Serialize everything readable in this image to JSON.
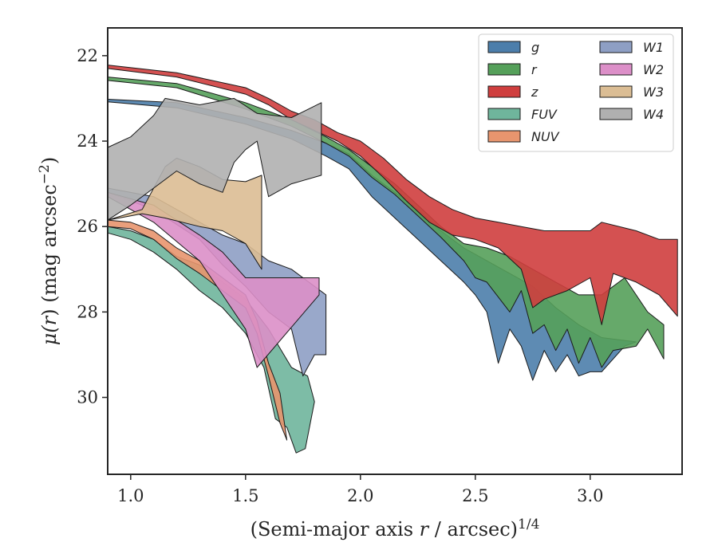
{
  "chart_data": {
    "type": "area",
    "xlabel": "(Semi-major axis r / arcsec)^1/4",
    "ylabel": "μ(r) (mag arcsec^−2)",
    "xlabel_parts": {
      "main": "(Semi-major axis ",
      "var": "r",
      "rest": " / arcsec)",
      "sup": "1/4"
    },
    "ylabel_parts": {
      "mu": "μ(",
      "var": "r",
      "mid": ") (mag arcsec",
      "sup": "−2",
      "close": ")"
    },
    "xlim": [
      0.9,
      3.4
    ],
    "ylim": [
      31.8,
      21.35
    ],
    "y_inverted": true,
    "grid": false,
    "legend_position": "top-right",
    "x_ticks": [
      1.0,
      1.5,
      2.0,
      2.5,
      3.0
    ],
    "x_tick_labels": [
      "1.0",
      "1.5",
      "2.0",
      "2.5",
      "3.0"
    ],
    "y_ticks": [
      22,
      24,
      26,
      28,
      30
    ],
    "y_tick_labels": [
      "22",
      "24",
      "26",
      "28",
      "30"
    ],
    "series": [
      {
        "name": "g",
        "color": "#4c7eab",
        "upper": [
          [
            0.9,
            23.02
          ],
          [
            1.2,
            23.1
          ],
          [
            1.5,
            23.45
          ],
          [
            1.7,
            23.75
          ],
          [
            1.85,
            24.05
          ],
          [
            1.95,
            24.3
          ],
          [
            2.05,
            24.8
          ],
          [
            2.15,
            25.2
          ],
          [
            2.25,
            25.6
          ],
          [
            2.35,
            26.1
          ],
          [
            2.45,
            26.5
          ],
          [
            2.55,
            26.8
          ],
          [
            2.65,
            27.1
          ],
          [
            2.75,
            27.4
          ],
          [
            2.85,
            27.9
          ],
          [
            2.95,
            28.3
          ],
          [
            3.05,
            28.6
          ],
          [
            3.2,
            28.7
          ]
        ],
        "lower": [
          [
            0.9,
            23.08
          ],
          [
            1.2,
            23.22
          ],
          [
            1.5,
            23.6
          ],
          [
            1.7,
            23.95
          ],
          [
            1.85,
            24.35
          ],
          [
            1.95,
            24.65
          ],
          [
            2.05,
            25.3
          ],
          [
            2.15,
            25.8
          ],
          [
            2.25,
            26.3
          ],
          [
            2.35,
            26.8
          ],
          [
            2.45,
            27.3
          ],
          [
            2.5,
            27.6
          ],
          [
            2.55,
            28.0
          ],
          [
            2.6,
            29.2
          ],
          [
            2.65,
            28.4
          ],
          [
            2.7,
            28.8
          ],
          [
            2.75,
            29.6
          ],
          [
            2.8,
            28.9
          ],
          [
            2.85,
            29.4
          ],
          [
            2.9,
            29.0
          ],
          [
            2.95,
            29.5
          ],
          [
            3.0,
            29.4
          ],
          [
            3.05,
            29.4
          ],
          [
            3.1,
            29.1
          ],
          [
            3.15,
            28.8
          ],
          [
            3.2,
            28.7
          ]
        ]
      },
      {
        "name": "r",
        "color": "#55a05a",
        "upper": [
          [
            0.9,
            22.5
          ],
          [
            1.2,
            22.65
          ],
          [
            1.5,
            23.1
          ],
          [
            1.7,
            23.5
          ],
          [
            1.85,
            23.9
          ],
          [
            1.95,
            24.2
          ],
          [
            2.05,
            24.6
          ],
          [
            2.15,
            25.0
          ],
          [
            2.25,
            25.5
          ],
          [
            2.35,
            26.0
          ],
          [
            2.45,
            26.4
          ],
          [
            2.55,
            26.5
          ],
          [
            2.65,
            26.7
          ],
          [
            2.75,
            27.0
          ],
          [
            2.85,
            27.3
          ],
          [
            2.95,
            27.6
          ],
          [
            3.05,
            27.6
          ],
          [
            3.15,
            27.2
          ],
          [
            3.25,
            28.0
          ],
          [
            3.32,
            28.3
          ]
        ],
        "lower": [
          [
            0.9,
            22.58
          ],
          [
            1.2,
            22.75
          ],
          [
            1.5,
            23.25
          ],
          [
            1.7,
            23.65
          ],
          [
            1.85,
            24.05
          ],
          [
            1.95,
            24.35
          ],
          [
            2.05,
            24.85
          ],
          [
            2.15,
            25.25
          ],
          [
            2.25,
            25.75
          ],
          [
            2.35,
            26.25
          ],
          [
            2.45,
            26.8
          ],
          [
            2.5,
            27.2
          ],
          [
            2.55,
            27.3
          ],
          [
            2.65,
            28.0
          ],
          [
            2.7,
            27.5
          ],
          [
            2.75,
            28.5
          ],
          [
            2.8,
            28.3
          ],
          [
            2.85,
            28.9
          ],
          [
            2.9,
            28.4
          ],
          [
            2.95,
            29.2
          ],
          [
            3.0,
            28.6
          ],
          [
            3.05,
            29.3
          ],
          [
            3.1,
            28.9
          ],
          [
            3.2,
            28.8
          ],
          [
            3.25,
            28.4
          ],
          [
            3.32,
            29.1
          ]
        ]
      },
      {
        "name": "z",
        "color": "#cf3e3e",
        "upper": [
          [
            0.9,
            22.22
          ],
          [
            1.2,
            22.4
          ],
          [
            1.5,
            22.75
          ],
          [
            1.6,
            23.0
          ],
          [
            1.7,
            23.3
          ],
          [
            1.8,
            23.5
          ],
          [
            1.9,
            23.8
          ],
          [
            2.0,
            24.0
          ],
          [
            2.1,
            24.4
          ],
          [
            2.2,
            24.9
          ],
          [
            2.3,
            25.3
          ],
          [
            2.4,
            25.6
          ],
          [
            2.5,
            25.8
          ],
          [
            2.6,
            25.9
          ],
          [
            2.7,
            26.0
          ],
          [
            2.8,
            26.1
          ],
          [
            2.9,
            26.1
          ],
          [
            3.0,
            26.1
          ],
          [
            3.05,
            25.9
          ],
          [
            3.2,
            26.1
          ],
          [
            3.3,
            26.3
          ],
          [
            3.38,
            26.3
          ]
        ],
        "lower": [
          [
            0.9,
            22.3
          ],
          [
            1.2,
            22.5
          ],
          [
            1.5,
            22.9
          ],
          [
            1.6,
            23.15
          ],
          [
            1.7,
            23.5
          ],
          [
            1.8,
            23.75
          ],
          [
            1.9,
            24.0
          ],
          [
            2.0,
            24.35
          ],
          [
            2.1,
            24.85
          ],
          [
            2.2,
            25.4
          ],
          [
            2.3,
            25.9
          ],
          [
            2.4,
            26.2
          ],
          [
            2.5,
            26.3
          ],
          [
            2.6,
            26.5
          ],
          [
            2.7,
            27.0
          ],
          [
            2.75,
            27.9
          ],
          [
            2.8,
            27.7
          ],
          [
            2.9,
            27.5
          ],
          [
            3.0,
            27.2
          ],
          [
            3.05,
            28.3
          ],
          [
            3.1,
            27.1
          ],
          [
            3.2,
            27.3
          ],
          [
            3.3,
            27.6
          ],
          [
            3.38,
            28.1
          ]
        ]
      },
      {
        "name": "FUV",
        "color": "#6fb59c",
        "upper": [
          [
            0.9,
            26.0
          ],
          [
            1.0,
            26.1
          ],
          [
            1.1,
            26.3
          ],
          [
            1.2,
            26.7
          ],
          [
            1.3,
            26.9
          ],
          [
            1.4,
            27.3
          ],
          [
            1.5,
            27.7
          ],
          [
            1.6,
            28.4
          ],
          [
            1.7,
            29.3
          ],
          [
            1.77,
            29.5
          ],
          [
            1.8,
            30.1
          ]
        ],
        "lower": [
          [
            0.9,
            26.15
          ],
          [
            1.0,
            26.3
          ],
          [
            1.1,
            26.6
          ],
          [
            1.2,
            27.0
          ],
          [
            1.3,
            27.5
          ],
          [
            1.4,
            27.9
          ],
          [
            1.5,
            28.5
          ],
          [
            1.58,
            29.3
          ],
          [
            1.63,
            30.5
          ],
          [
            1.68,
            30.7
          ],
          [
            1.72,
            31.3
          ],
          [
            1.76,
            31.2
          ],
          [
            1.8,
            30.1
          ]
        ]
      },
      {
        "name": "NUV",
        "color": "#e8956e",
        "upper": [
          [
            0.9,
            25.85
          ],
          [
            1.0,
            25.9
          ],
          [
            1.1,
            26.1
          ],
          [
            1.2,
            26.5
          ],
          [
            1.3,
            26.8
          ],
          [
            1.4,
            27.2
          ],
          [
            1.5,
            27.6
          ],
          [
            1.55,
            28.2
          ],
          [
            1.6,
            29.2
          ],
          [
            1.65,
            29.9
          ],
          [
            1.68,
            31.0
          ]
        ],
        "lower": [
          [
            0.9,
            26.0
          ],
          [
            1.0,
            26.05
          ],
          [
            1.1,
            26.3
          ],
          [
            1.2,
            26.75
          ],
          [
            1.3,
            27.1
          ],
          [
            1.4,
            27.5
          ],
          [
            1.5,
            27.9
          ],
          [
            1.55,
            28.5
          ],
          [
            1.6,
            29.5
          ],
          [
            1.65,
            30.6
          ],
          [
            1.68,
            31.0
          ]
        ]
      },
      {
        "name": "W1",
        "color": "#8e9fc4",
        "upper": [
          [
            0.9,
            25.1
          ],
          [
            1.1,
            25.3
          ],
          [
            1.3,
            25.9
          ],
          [
            1.4,
            26.2
          ],
          [
            1.5,
            26.4
          ],
          [
            1.6,
            26.8
          ],
          [
            1.7,
            27.0
          ],
          [
            1.8,
            27.4
          ],
          [
            1.85,
            27.6
          ]
        ],
        "lower": [
          [
            0.9,
            25.2
          ],
          [
            1.1,
            25.6
          ],
          [
            1.3,
            26.3
          ],
          [
            1.4,
            26.9
          ],
          [
            1.5,
            27.4
          ],
          [
            1.6,
            28.0
          ],
          [
            1.7,
            28.4
          ],
          [
            1.75,
            29.5
          ],
          [
            1.8,
            29.0
          ],
          [
            1.85,
            29.0
          ]
        ]
      },
      {
        "name": "W2",
        "color": "#dc8fc8",
        "upper": [
          [
            0.9,
            25.2
          ],
          [
            1.1,
            25.5
          ],
          [
            1.3,
            26.2
          ],
          [
            1.4,
            26.6
          ],
          [
            1.5,
            27.2
          ],
          [
            1.55,
            27.2
          ],
          [
            1.82,
            27.2
          ]
        ],
        "lower": [
          [
            0.9,
            25.3
          ],
          [
            1.1,
            25.9
          ],
          [
            1.3,
            26.8
          ],
          [
            1.4,
            27.6
          ],
          [
            1.5,
            28.4
          ],
          [
            1.55,
            29.3
          ],
          [
            1.82,
            27.6
          ]
        ]
      },
      {
        "name": "W3",
        "color": "#dbbd94",
        "upper": [
          [
            0.9,
            25.85
          ],
          [
            1.05,
            25.6
          ],
          [
            1.15,
            24.6
          ],
          [
            1.2,
            24.4
          ],
          [
            1.3,
            24.6
          ],
          [
            1.4,
            24.9
          ],
          [
            1.5,
            24.95
          ],
          [
            1.57,
            24.8
          ]
        ],
        "lower": [
          [
            0.9,
            25.85
          ],
          [
            1.05,
            25.7
          ],
          [
            1.15,
            25.8
          ],
          [
            1.3,
            26.0
          ],
          [
            1.4,
            26.1
          ],
          [
            1.5,
            26.4
          ],
          [
            1.57,
            27.0
          ]
        ]
      },
      {
        "name": "W4",
        "color": "#b0b0b0",
        "upper": [
          [
            0.9,
            24.15
          ],
          [
            1.0,
            23.9
          ],
          [
            1.1,
            23.4
          ],
          [
            1.15,
            23.0
          ],
          [
            1.3,
            23.15
          ],
          [
            1.45,
            23.0
          ],
          [
            1.55,
            23.35
          ],
          [
            1.7,
            23.45
          ],
          [
            1.83,
            23.1
          ]
        ],
        "lower": [
          [
            0.9,
            25.85
          ],
          [
            1.0,
            25.5
          ],
          [
            1.1,
            25.1
          ],
          [
            1.2,
            24.7
          ],
          [
            1.3,
            25.0
          ],
          [
            1.4,
            25.2
          ],
          [
            1.45,
            24.5
          ],
          [
            1.5,
            24.2
          ],
          [
            1.55,
            24.0
          ],
          [
            1.6,
            25.3
          ],
          [
            1.7,
            25.0
          ],
          [
            1.83,
            24.8
          ]
        ]
      }
    ],
    "legend_columns": [
      [
        "g",
        "r",
        "z",
        "FUV",
        "NUV"
      ],
      [
        "W1",
        "W2",
        "W3",
        "W4"
      ]
    ]
  }
}
